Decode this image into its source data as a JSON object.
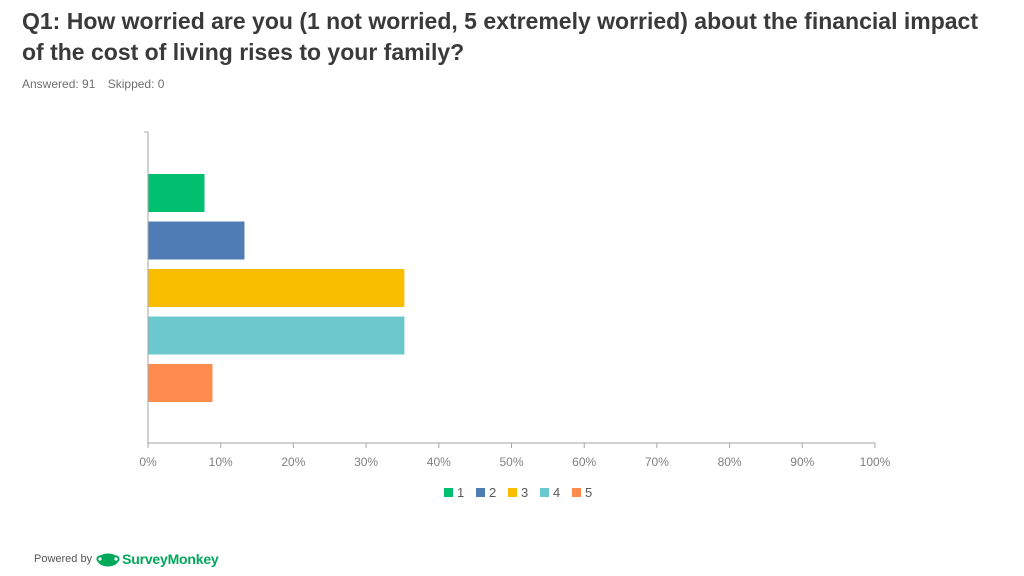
{
  "header": {
    "title": "Q1: How worried are you (1 not worried, 5 extremely worried) about the financial impact of the cost of living rises to your family?",
    "answered": "Answered: 91",
    "skipped": "Skipped: 0"
  },
  "footer": {
    "powered_by": "Powered by",
    "brand": "SurveyMonkey"
  },
  "chart_data": {
    "type": "bar",
    "orientation": "horizontal",
    "categories": [
      "1",
      "2",
      "3",
      "4",
      "5"
    ],
    "values": [
      7.7,
      13.2,
      35.2,
      35.2,
      8.8
    ],
    "colors": [
      "#00bf6f",
      "#507cb6",
      "#f9be00",
      "#6bc8cd",
      "#ff8b4f"
    ],
    "xlim": [
      0,
      100
    ],
    "xticks": [
      "0%",
      "10%",
      "20%",
      "30%",
      "40%",
      "50%",
      "60%",
      "70%",
      "80%",
      "90%",
      "100%"
    ],
    "legend": [
      "1",
      "2",
      "3",
      "4",
      "5"
    ],
    "legend_position": "bottom",
    "grid": false
  }
}
